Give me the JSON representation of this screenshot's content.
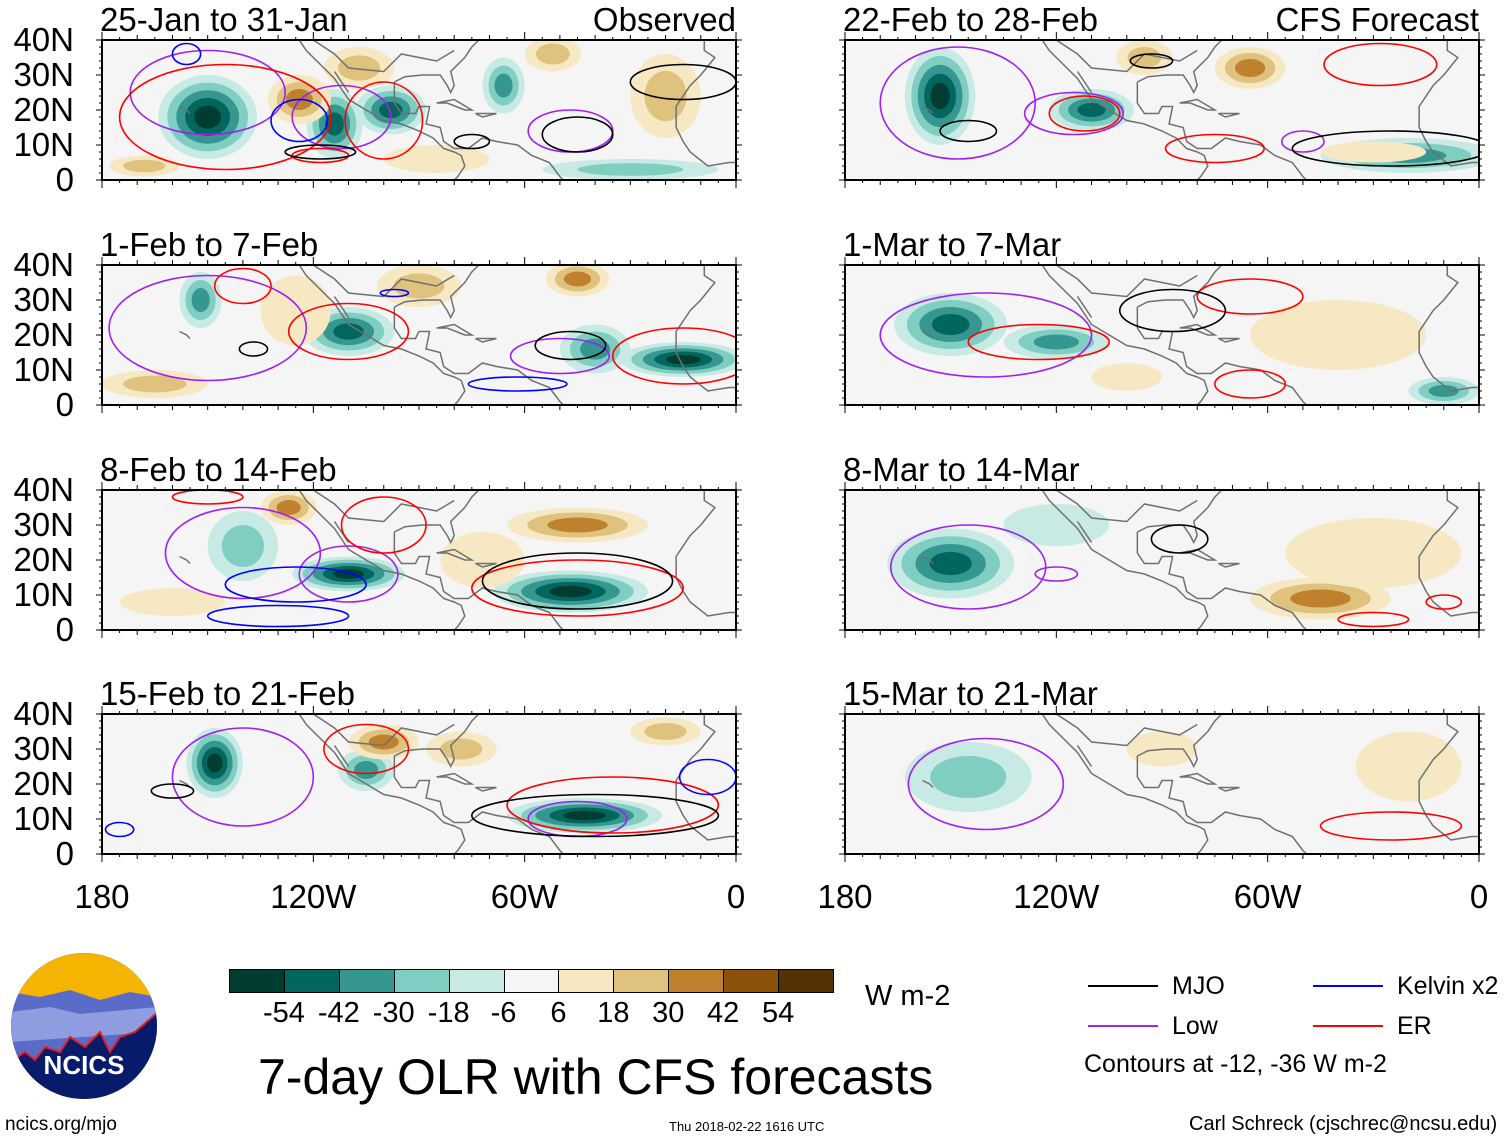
{
  "title": "7-day OLR with CFS forecasts",
  "units": "W m-2",
  "footer": {
    "left": "ncics.org/mjo",
    "center": "Thu 2018-02-22 1616 UTC",
    "right": "Carl Schreck (cjschrec@ncsu.edu)"
  },
  "logo": {
    "text": "NCICS"
  },
  "legend": {
    "items": [
      {
        "label": "MJO",
        "color": "#000000"
      },
      {
        "label": "Kelvin x2",
        "color": "#0000ff"
      },
      {
        "label": "Low",
        "color": "#a020f0"
      },
      {
        "label": "ER",
        "color": "#ff0000"
      }
    ],
    "note": "Contours at -12, -36 W m-2"
  },
  "colorbar": {
    "labels": [
      "-54",
      "-42",
      "-30",
      "-18",
      "-6",
      "6",
      "18",
      "30",
      "42",
      "54"
    ],
    "colors": [
      "#003c30",
      "#01665e",
      "#35978f",
      "#80cdc1",
      "#c7eae5",
      "#f5f5f5",
      "#f6e8c3",
      "#dfc27d",
      "#bf812d",
      "#8c510a",
      "#543005"
    ]
  },
  "chart_data": {
    "type": "heatmap",
    "xlabels": [
      "180",
      "120W",
      "60W",
      "0"
    ],
    "xticks": [
      -180,
      -120,
      -60,
      0
    ],
    "ylabels": [
      "40N",
      "30N",
      "20N",
      "10N",
      "0"
    ],
    "yticks": [
      40,
      30,
      20,
      10,
      0
    ],
    "xlim": [
      -180,
      0
    ],
    "ylim": [
      0,
      40
    ],
    "panels": [
      {
        "title": "25-Jan to 31-Jan",
        "label": "Observed",
        "blobs": [
          [
            -150,
            18,
            14,
            12,
            -60
          ],
          [
            -114,
            16,
            8,
            10,
            -50
          ],
          [
            -98,
            20,
            10,
            7,
            -45
          ],
          [
            -66,
            27,
            6,
            8,
            -35
          ],
          [
            -30,
            3,
            25,
            3,
            -20
          ],
          [
            -124,
            23,
            9,
            7,
            35
          ],
          [
            -107,
            32,
            10,
            6,
            25
          ],
          [
            -52,
            36,
            8,
            5,
            28
          ],
          [
            -168,
            4,
            10,
            3,
            20
          ],
          [
            -85,
            6,
            15,
            4,
            15
          ],
          [
            -20,
            24,
            10,
            12,
            20
          ]
        ],
        "contours": [
          [
            "low",
            -150,
            25,
            22,
            12
          ],
          [
            "low",
            -112,
            18,
            14,
            9
          ],
          [
            "low",
            -47,
            14,
            12,
            6
          ],
          [
            "er",
            -145,
            18,
            30,
            15
          ],
          [
            "er",
            -100,
            17,
            11,
            11
          ],
          [
            "er",
            -118,
            7,
            8,
            2
          ],
          [
            "kelvin",
            -124,
            17,
            8,
            6
          ],
          [
            "kelvin",
            -156,
            36,
            4,
            3
          ],
          [
            "mjo",
            -45,
            13,
            10,
            5
          ],
          [
            "mjo",
            -118,
            8,
            10,
            2
          ],
          [
            "mjo",
            -75,
            11,
            5,
            2
          ],
          [
            "mjo",
            -15,
            28,
            15,
            5
          ]
        ]
      },
      {
        "title": "1-Feb to 7-Feb",
        "blobs": [
          [
            -152,
            30,
            6,
            8,
            -40
          ],
          [
            -110,
            21,
            13,
            7,
            -50
          ],
          [
            -40,
            16,
            10,
            7,
            -30
          ],
          [
            -15,
            13,
            18,
            5,
            -55
          ],
          [
            -45,
            36,
            9,
            5,
            40
          ],
          [
            -90,
            34,
            12,
            6,
            20
          ],
          [
            -165,
            6,
            15,
            4,
            25
          ],
          [
            -125,
            27,
            10,
            10,
            15
          ]
        ],
        "contours": [
          [
            "low",
            -150,
            22,
            28,
            15
          ],
          [
            "low",
            -50,
            14,
            14,
            5
          ],
          [
            "er",
            -110,
            21,
            17,
            8
          ],
          [
            "er",
            -140,
            34,
            8,
            5
          ],
          [
            "er",
            -15,
            14,
            20,
            8
          ],
          [
            "mjo",
            -47,
            17,
            10,
            4
          ],
          [
            "mjo",
            -137,
            16,
            4,
            2
          ],
          [
            "kelvin",
            -62,
            6,
            14,
            2
          ],
          [
            "kelvin",
            -97,
            32,
            4,
            1
          ]
        ]
      },
      {
        "title": "8-Feb to 14-Feb",
        "blobs": [
          [
            -110,
            16,
            16,
            5,
            -55
          ],
          [
            -140,
            24,
            10,
            10,
            -25
          ],
          [
            -47,
            11,
            22,
            6,
            -55
          ],
          [
            -127,
            35,
            8,
            5,
            35
          ],
          [
            -45,
            30,
            20,
            5,
            30
          ],
          [
            -72,
            20,
            12,
            8,
            15
          ],
          [
            -160,
            8,
            15,
            4,
            15
          ]
        ],
        "contours": [
          [
            "low",
            -140,
            22,
            22,
            13
          ],
          [
            "low",
            -110,
            16,
            14,
            8
          ],
          [
            "er",
            -45,
            12,
            30,
            8
          ],
          [
            "er",
            -100,
            30,
            12,
            8
          ],
          [
            "er",
            -150,
            38,
            10,
            2
          ],
          [
            "mjo",
            -45,
            14,
            27,
            8
          ],
          [
            "kelvin",
            -125,
            13,
            20,
            5
          ],
          [
            "kelvin",
            -130,
            4,
            20,
            3
          ]
        ]
      },
      {
        "title": "15-Feb to 21-Feb",
        "blobs": [
          [
            -148,
            26,
            8,
            10,
            -55
          ],
          [
            -105,
            24,
            8,
            6,
            -30
          ],
          [
            -43,
            11,
            22,
            5,
            -55
          ],
          [
            -100,
            32,
            10,
            5,
            30
          ],
          [
            -78,
            30,
            10,
            5,
            25
          ],
          [
            -20,
            35,
            10,
            4,
            20
          ]
        ],
        "contours": [
          [
            "low",
            -140,
            22,
            20,
            14
          ],
          [
            "low",
            -45,
            10,
            14,
            5
          ],
          [
            "er",
            -105,
            30,
            12,
            7
          ],
          [
            "er",
            -35,
            14,
            30,
            8
          ],
          [
            "mjo",
            -160,
            18,
            6,
            2
          ],
          [
            "mjo",
            -40,
            11,
            35,
            6
          ],
          [
            "kelvin",
            -8,
            22,
            8,
            5
          ],
          [
            "kelvin",
            -175,
            7,
            4,
            2
          ]
        ]
      },
      {
        "title": "22-Feb to 28-Feb",
        "label": "CFS Forecast",
        "blobs": [
          [
            -153,
            24,
            10,
            14,
            -60
          ],
          [
            -110,
            20,
            12,
            6,
            -45
          ],
          [
            -20,
            7,
            25,
            5,
            -30
          ],
          [
            -65,
            32,
            10,
            6,
            30
          ],
          [
            -95,
            35,
            8,
            5,
            20
          ],
          [
            -30,
            8,
            15,
            3,
            15
          ]
        ],
        "contours": [
          [
            "low",
            -148,
            22,
            22,
            16
          ],
          [
            "low",
            -115,
            19,
            14,
            6
          ],
          [
            "low",
            -50,
            11,
            6,
            3
          ],
          [
            "er",
            -112,
            19,
            10,
            5
          ],
          [
            "er",
            -28,
            33,
            16,
            6
          ],
          [
            "er",
            -75,
            9,
            14,
            4
          ],
          [
            "mjo",
            -145,
            14,
            8,
            3
          ],
          [
            "mjo",
            -25,
            9,
            28,
            5
          ],
          [
            "mjo",
            -93,
            34,
            6,
            2
          ]
        ]
      },
      {
        "title": "1-Mar to 7-Mar",
        "blobs": [
          [
            -150,
            23,
            16,
            9,
            -45
          ],
          [
            -120,
            18,
            15,
            5,
            -35
          ],
          [
            -10,
            4,
            10,
            4,
            -35
          ],
          [
            -100,
            8,
            10,
            4,
            15
          ],
          [
            -40,
            20,
            25,
            10,
            12
          ]
        ],
        "contours": [
          [
            "low",
            -140,
            20,
            30,
            12
          ],
          [
            "er",
            -125,
            18,
            20,
            5
          ],
          [
            "er",
            -65,
            6,
            10,
            4
          ],
          [
            "er",
            -65,
            31,
            15,
            5
          ],
          [
            "mjo",
            -87,
            27,
            15,
            6
          ]
        ]
      },
      {
        "title": "8-Mar to 14-Mar",
        "blobs": [
          [
            -150,
            19,
            18,
            10,
            -45
          ],
          [
            -45,
            9,
            20,
            6,
            30
          ],
          [
            -30,
            22,
            25,
            10,
            15
          ],
          [
            -120,
            30,
            15,
            6,
            -10
          ]
        ],
        "contours": [
          [
            "low",
            -145,
            18,
            22,
            12
          ],
          [
            "low",
            -120,
            16,
            6,
            2
          ],
          [
            "er",
            -30,
            3,
            10,
            2
          ],
          [
            "er",
            -10,
            8,
            5,
            2
          ],
          [
            "mjo",
            -85,
            26,
            8,
            4
          ]
        ]
      },
      {
        "title": "15-Mar to 21-Mar",
        "blobs": [
          [
            -145,
            22,
            18,
            10,
            -25
          ],
          [
            -20,
            25,
            15,
            10,
            10
          ],
          [
            -90,
            30,
            10,
            5,
            8
          ]
        ],
        "contours": [
          [
            "low",
            -140,
            20,
            22,
            13
          ],
          [
            "er",
            -25,
            8,
            20,
            4
          ]
        ]
      }
    ]
  }
}
